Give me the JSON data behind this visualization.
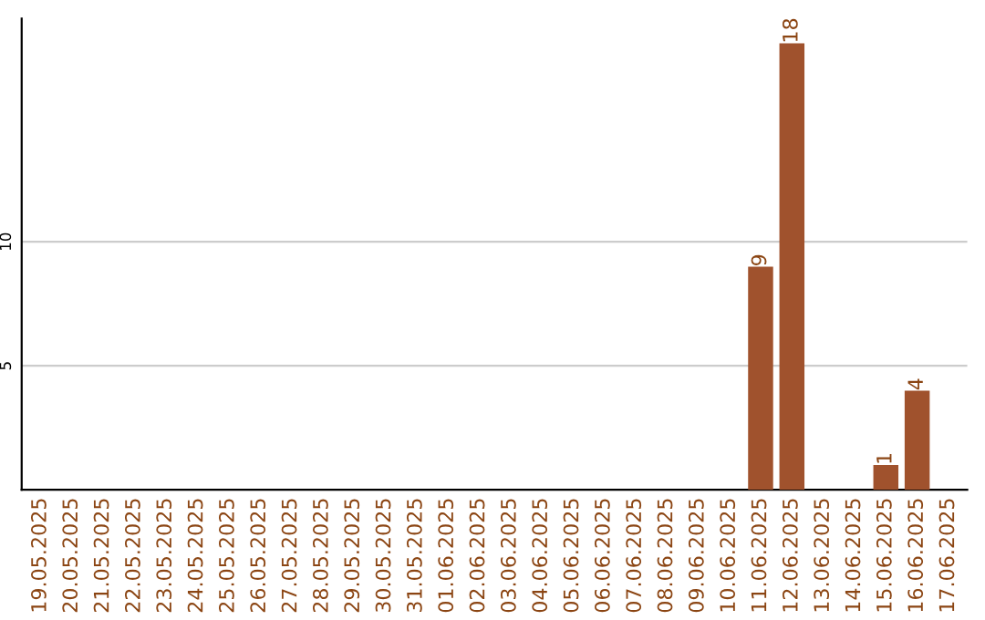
{
  "chart_data": {
    "type": "bar",
    "categories": [
      "19.05.2025",
      "20.05.2025",
      "21.05.2025",
      "22.05.2025",
      "23.05.2025",
      "24.05.2025",
      "25.05.2025",
      "26.05.2025",
      "27.05.2025",
      "28.05.2025",
      "29.05.2025",
      "30.05.2025",
      "31.05.2025",
      "01.06.2025",
      "02.06.2025",
      "03.06.2025",
      "04.06.2025",
      "05.06.2025",
      "06.06.2025",
      "07.06.2025",
      "08.06.2025",
      "09.06.2025",
      "10.06.2025",
      "11.06.2025",
      "12.06.2025",
      "13.06.2025",
      "14.06.2025",
      "15.06.2025",
      "16.06.2025",
      "17.06.2025"
    ],
    "values": [
      0,
      0,
      0,
      0,
      0,
      0,
      0,
      0,
      0,
      0,
      0,
      0,
      0,
      0,
      0,
      0,
      0,
      0,
      0,
      0,
      0,
      0,
      0,
      9,
      18,
      0,
      0,
      1,
      4,
      0
    ],
    "value_labels": [
      null,
      null,
      null,
      null,
      null,
      null,
      null,
      null,
      null,
      null,
      null,
      null,
      null,
      null,
      null,
      null,
      null,
      null,
      null,
      null,
      null,
      null,
      null,
      "9",
      "18",
      null,
      null,
      "1",
      "4",
      null
    ],
    "color": "#a0522d",
    "ylim": [
      0,
      19
    ],
    "yticks": [
      5,
      10
    ],
    "grid": "y"
  }
}
